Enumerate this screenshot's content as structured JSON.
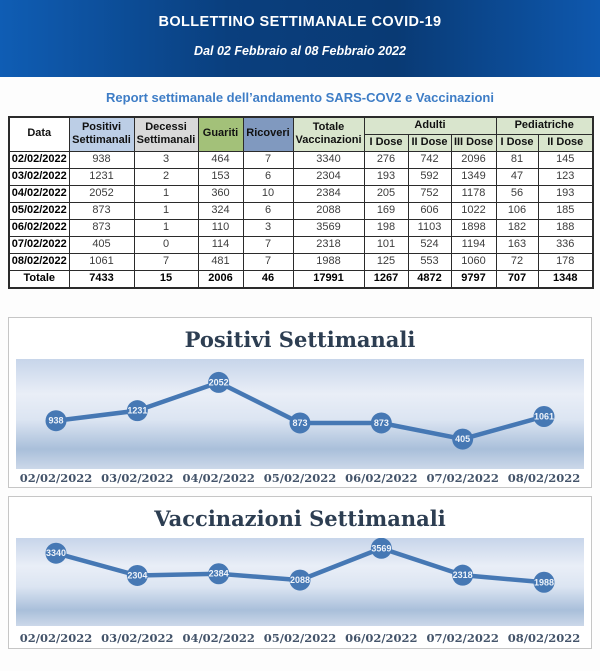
{
  "header": {
    "title": "BOLLETTINO SETTIMANALE COVID-19",
    "subtitle": "Dal 02 Febbraio al 08 Febbraio 2022"
  },
  "report_line": "Report settimanale dell’andamento SARS-COV2 e Vaccinazioni",
  "colors": {
    "header_gradient_edge": "#0e58ae",
    "header_gradient_center": "#093a74",
    "report_line_blue": "#3e7dc6",
    "col_positivi": "#bccee6",
    "col_decessi": "#d9d9d9",
    "col_guariti": "#a3c179",
    "col_ricoveri": "#8099bf",
    "col_vaccinazioni": "#d9e5cd",
    "chart_line": "#4678b4",
    "chart_label": "#44546a",
    "chart_title": "#2d3e52"
  },
  "table": {
    "columns": {
      "data": "Data",
      "positivi": "Positivi Settimanali",
      "decessi": "Decessi Settimanali",
      "guariti": "Guariti",
      "ricoveri": "Ricoveri",
      "vaccinazioni": "Totale Vaccinazioni",
      "adulti_group": "Adulti",
      "pediatriche_group": "Pediatriche",
      "dose1": "I Dose",
      "dose2": "II Dose",
      "dose3": "III Dose",
      "ped_dose1": "I Dose",
      "ped_dose2": "II Dose"
    },
    "rows": [
      [
        "02/02/2022",
        938,
        3,
        464,
        7,
        3340,
        276,
        742,
        2096,
        81,
        145
      ],
      [
        "03/02/2022",
        1231,
        2,
        153,
        6,
        2304,
        193,
        592,
        1349,
        47,
        123
      ],
      [
        "04/02/2022",
        2052,
        1,
        360,
        10,
        2384,
        205,
        752,
        1178,
        56,
        193
      ],
      [
        "05/02/2022",
        873,
        1,
        324,
        6,
        2088,
        169,
        606,
        1022,
        106,
        185
      ],
      [
        "06/02/2022",
        873,
        1,
        110,
        3,
        3569,
        198,
        1103,
        1898,
        182,
        188
      ],
      [
        "07/02/2022",
        405,
        0,
        114,
        7,
        2318,
        101,
        524,
        1194,
        163,
        336
      ],
      [
        "08/02/2022",
        1061,
        7,
        481,
        7,
        1988,
        125,
        553,
        1060,
        72,
        178
      ]
    ],
    "total_row": [
      "Totale",
      7433,
      15,
      2006,
      46,
      17991,
      1267,
      4872,
      9797,
      707,
      1348
    ]
  },
  "charts": [
    {
      "title": "Positivi Settimanali",
      "chart_data": {
        "type": "line",
        "x": [
          "02/02/2022",
          "03/02/2022",
          "04/02/2022",
          "05/02/2022",
          "06/02/2022",
          "07/02/2022",
          "08/02/2022"
        ],
        "series": [
          {
            "name": "Positivi Settimanali",
            "values": [
              938,
              1231,
              2052,
              873,
              873,
              405,
              1061
            ]
          }
        ],
        "ylim": [
          0,
          2500
        ],
        "grid": false,
        "legend_position": "none",
        "marker_data_labels": true
      }
    },
    {
      "title": "Vaccinazioni Settimanali",
      "chart_data": {
        "type": "line",
        "x": [
          "02/02/2022",
          "03/02/2022",
          "04/02/2022",
          "05/02/2022",
          "06/02/2022",
          "07/02/2022",
          "08/02/2022"
        ],
        "series": [
          {
            "name": "Vaccinazioni Settimanali",
            "values": [
              3340,
              2304,
              2384,
              2088,
              3569,
              2318,
              1988
            ]
          }
        ],
        "ylim": [
          0,
          4000
        ],
        "grid": false,
        "legend_position": "none",
        "marker_data_labels": true
      }
    }
  ]
}
